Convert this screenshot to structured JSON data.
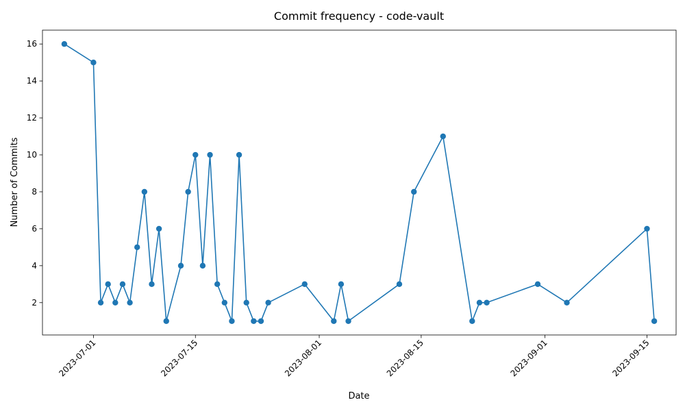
{
  "chart_data": {
    "type": "line",
    "title": "Commit frequency - code-vault",
    "xlabel": "Date",
    "ylabel": "Number of Commits",
    "xlim": [
      "2023-06-24",
      "2023-09-19"
    ],
    "ylim": [
      0.25,
      16.75
    ],
    "x_ticks": [
      "2023-07-01",
      "2023-07-15",
      "2023-08-01",
      "2023-08-15",
      "2023-09-01",
      "2023-09-15"
    ],
    "y_ticks": [
      2,
      4,
      6,
      8,
      10,
      12,
      14,
      16
    ],
    "grid": false,
    "legend": "none",
    "color": "#1f77b4",
    "marker": "circle",
    "series": [
      {
        "x": [
          "2023-06-27",
          "2023-07-01",
          "2023-07-02",
          "2023-07-03",
          "2023-07-04",
          "2023-07-05",
          "2023-07-06",
          "2023-07-07",
          "2023-07-08",
          "2023-07-09",
          "2023-07-10",
          "2023-07-11",
          "2023-07-13",
          "2023-07-14",
          "2023-07-15",
          "2023-07-16",
          "2023-07-17",
          "2023-07-18",
          "2023-07-19",
          "2023-07-20",
          "2023-07-21",
          "2023-07-22",
          "2023-07-23",
          "2023-07-24",
          "2023-07-25",
          "2023-07-30",
          "2023-08-03",
          "2023-08-04",
          "2023-08-05",
          "2023-08-12",
          "2023-08-14",
          "2023-08-18",
          "2023-08-22",
          "2023-08-23",
          "2023-08-24",
          "2023-08-31",
          "2023-09-04",
          "2023-09-15",
          "2023-09-16"
        ],
        "values": [
          16,
          15,
          2,
          3,
          2,
          3,
          2,
          5,
          8,
          3,
          6,
          1,
          4,
          8,
          10,
          4,
          10,
          3,
          2,
          1,
          10,
          2,
          1,
          1,
          2,
          3,
          1,
          3,
          1,
          3,
          8,
          11,
          1,
          2,
          2,
          3,
          2,
          6,
          1
        ]
      }
    ]
  }
}
